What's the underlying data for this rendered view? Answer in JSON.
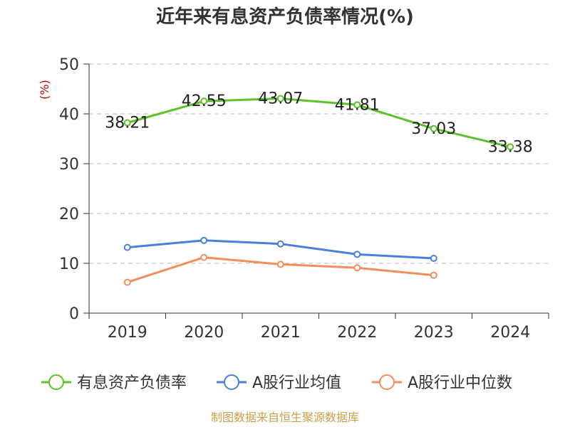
{
  "chart_data": {
    "type": "line",
    "title": "近年来有息资产负债率情况(%)",
    "ylabel": "(%)",
    "categories": [
      "2019",
      "2020",
      "2021",
      "2022",
      "2023",
      "2024"
    ],
    "ylim": [
      0,
      50
    ],
    "yticks": [
      0,
      10,
      20,
      30,
      40,
      50
    ],
    "grid": "horizontal dashed",
    "legend_position": "bottom",
    "series": [
      {
        "name": "有息资产负债率",
        "color": "#5bc227",
        "values": [
          38.21,
          42.55,
          43.07,
          41.81,
          37.03,
          33.38
        ],
        "labels": [
          "38.21",
          "42.55",
          "43.07",
          "41.81",
          "37.03",
          "33.38"
        ]
      },
      {
        "name": "A股行业均值",
        "color": "#4a7fdc",
        "values": [
          13.2,
          14.6,
          13.9,
          11.8,
          11.0,
          null
        ]
      },
      {
        "name": "A股行业中位数",
        "color": "#f28e5c",
        "values": [
          6.2,
          11.2,
          9.8,
          9.1,
          7.6,
          null
        ]
      }
    ]
  },
  "source_text": "制图数据来自恒生聚源数据库",
  "colors": {
    "axis": "#333333",
    "grid": "#bbbbbb",
    "unit": "#cc0000",
    "source": "#c8a04a"
  }
}
